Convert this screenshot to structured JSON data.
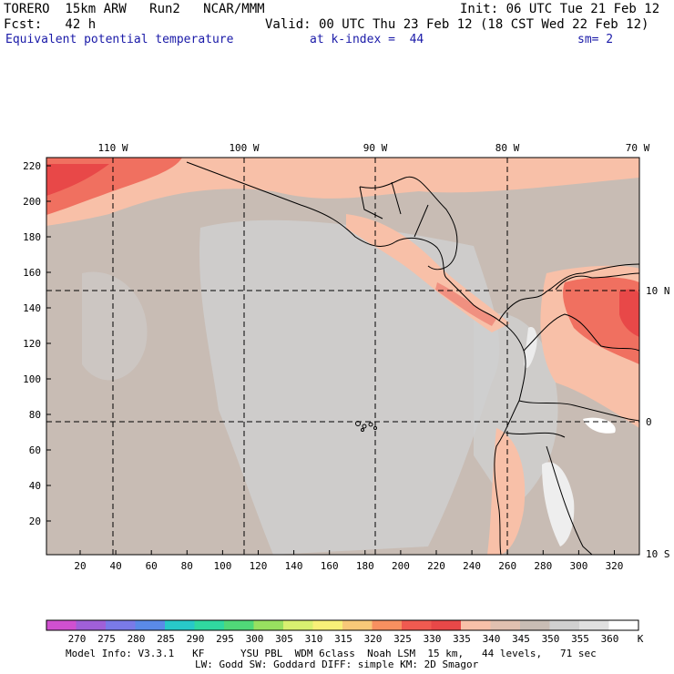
{
  "header": {
    "line1_left": "TORERO  15km ARW   Run2   NCAR/MMM",
    "line1_right": "Init: 06 UTC Tue 21 Feb 12",
    "line2_left": "Fcst:   42 h",
    "line2_right": "Valid: 00 UTC Thu 23 Feb 12 (18 CST Wed 22 Feb 12)",
    "field_name": "Equivalent potential temperature",
    "level": "at k-index =  44",
    "smoothing": "sm= 2"
  },
  "map": {
    "top_lon_labels": [
      "110 W",
      "100 W",
      "90 W",
      "80 W",
      "70 W"
    ],
    "right_lat_labels": [
      "10 N",
      "0",
      "10 S"
    ],
    "x_ticks": [
      "20",
      "40",
      "60",
      "80",
      "100",
      "120",
      "140",
      "160",
      "180",
      "200",
      "220",
      "240",
      "260",
      "280",
      "300",
      "320"
    ],
    "y_ticks": [
      "220",
      "200",
      "180",
      "160",
      "140",
      "120",
      "100",
      "80",
      "60",
      "40",
      "20"
    ]
  },
  "colorbar": {
    "labels": [
      "270",
      "275",
      "280",
      "285",
      "290",
      "295",
      "300",
      "305",
      "310",
      "315",
      "320",
      "325",
      "330",
      "335",
      "340",
      "345",
      "350",
      "355",
      "360"
    ],
    "unit": "K",
    "colors": [
      "#d050d0",
      "#a060d8",
      "#7a7ae8",
      "#5a8ae8",
      "#28c8c8",
      "#30d8a0",
      "#50d878",
      "#98e060",
      "#d8f070",
      "#f8f078",
      "#f8c878",
      "#f89060",
      "#f05a50",
      "#e84848",
      "#f8c0a8",
      "#e0c0b0",
      "#c8bcb4",
      "#d0d0d0",
      "#e0e0e0",
      "#ffffff"
    ]
  },
  "footer": {
    "line1": "Model Info: V3.3.1   KF      YSU PBL  WDM 6class  Noah LSM  15 km,   44 levels,   71 sec",
    "line2": "LW: Godd SW: Goddard DIFF: simple KM: 2D Smagor"
  }
}
